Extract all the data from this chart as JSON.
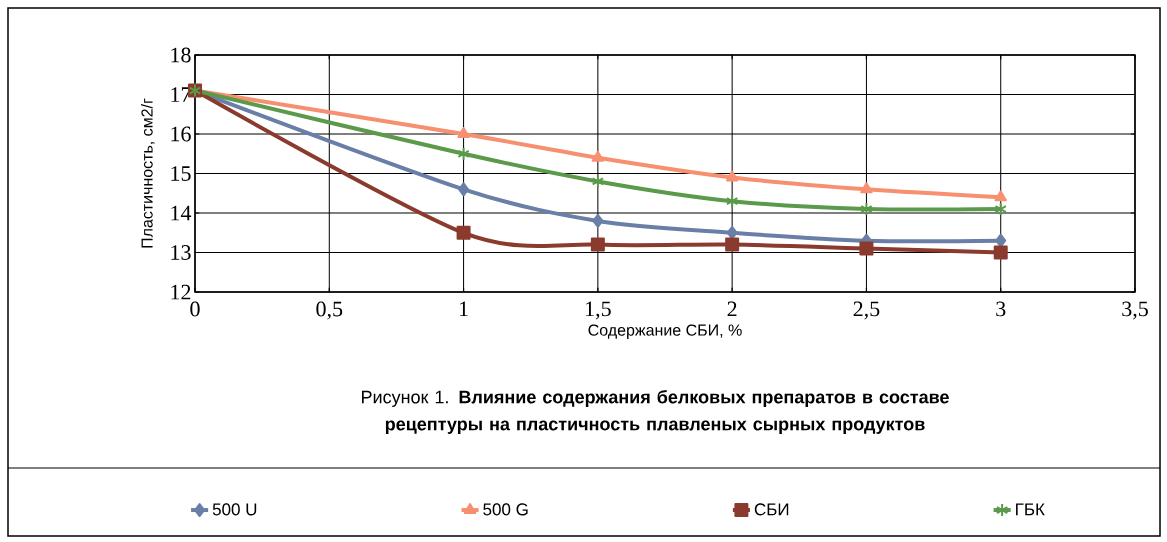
{
  "chart_data": {
    "type": "line",
    "xlabel": "Содержание СБИ, %",
    "ylabel": "Пластичность, см2/г",
    "annotations": [
      "Рисунок 1. **Влияние содержания белковых препаратов в составе рецептуры на пластичность плавленых сырных продуктов**"
    ],
    "x": [
      0,
      1,
      1.5,
      2,
      2.5,
      3
    ],
    "series": [
      {
        "name": "500 U",
        "color": "#6a7fa8",
        "marker": "diamond",
        "values": [
          17.1,
          14.6,
          13.8,
          13.5,
          13.3,
          13.3
        ]
      },
      {
        "name": "500 G",
        "color": "#f79070",
        "marker": "triangle",
        "values": [
          17.1,
          16.0,
          15.4,
          14.9,
          14.6,
          14.4
        ]
      },
      {
        "name": "СБИ",
        "color": "#8b3a2e",
        "marker": "square",
        "values": [
          17.1,
          13.5,
          13.2,
          13.2,
          13.1,
          13.0
        ]
      },
      {
        "name": "ГБК",
        "color": "#5a9a4a",
        "marker": "cross",
        "values": [
          17.1,
          15.5,
          14.8,
          14.3,
          14.1,
          14.1
        ]
      }
    ],
    "xlim": [
      0,
      3.5
    ],
    "xticks": [
      0,
      {
        "value": 0.5,
        "label": "0,5"
      },
      1,
      {
        "value": 1.5,
        "label": "1,5"
      },
      2,
      {
        "value": 2.5,
        "label": "2,5"
      },
      3,
      {
        "value": 3.5,
        "label": "3,5"
      }
    ],
    "ylim": [
      12,
      18
    ],
    "yticks": [
      12,
      13,
      14,
      15,
      16,
      17,
      18
    ],
    "grid": true,
    "legend": "bottom",
    "line_style": "solid"
  }
}
